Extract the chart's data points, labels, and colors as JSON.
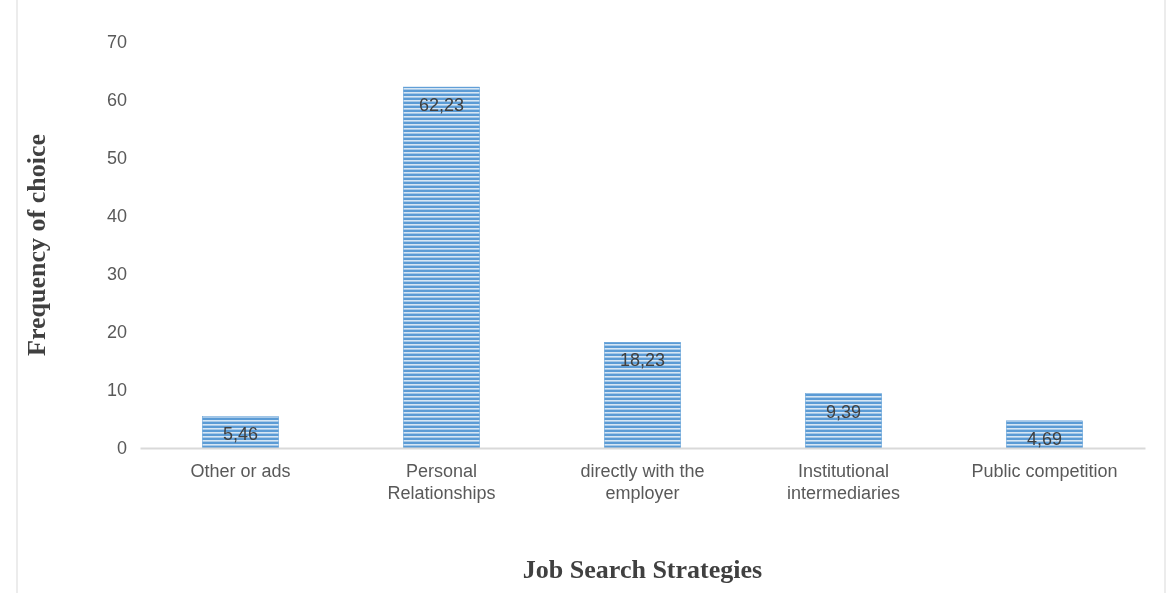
{
  "chart_data": {
    "type": "bar",
    "xlabel": "Job Search Strategies",
    "ylabel": "Frequency of choice",
    "categories": [
      "Other or ads",
      "Personal Relationships",
      "directly with the employer",
      "Institutional intermediaries",
      "Public competition"
    ],
    "values": [
      5.46,
      62.23,
      18.23,
      9.39,
      4.69
    ],
    "value_labels": [
      "5,46",
      "62,23",
      "18,23",
      "9,39",
      "4,69"
    ],
    "color": "#5b9bd5",
    "ylim": [
      0,
      70
    ],
    "yticks": [
      0,
      10,
      20,
      30,
      40,
      50,
      60,
      70
    ],
    "grid": false
  }
}
